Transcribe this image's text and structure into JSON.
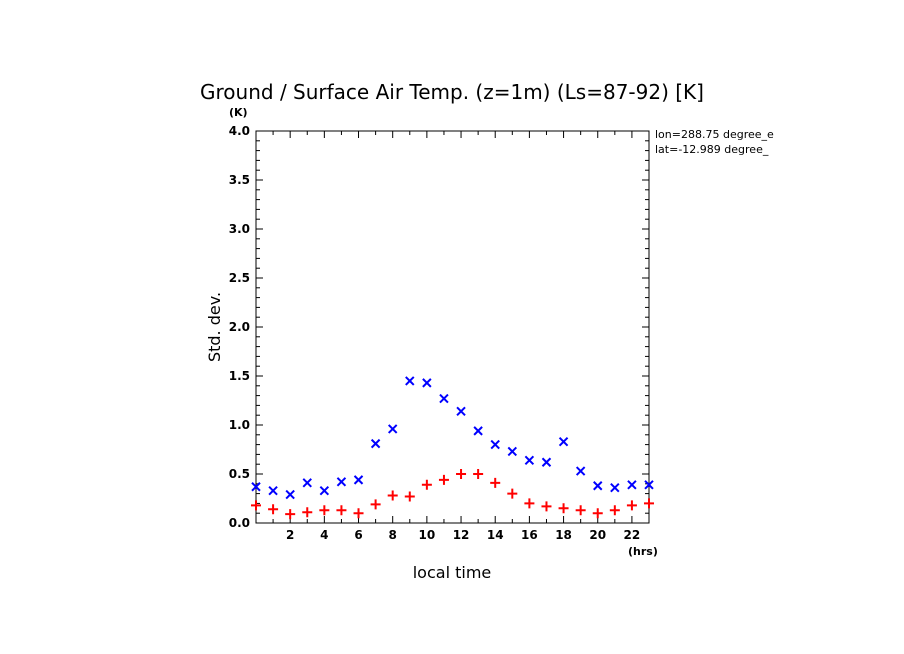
{
  "chart_data": {
    "type": "scatter",
    "title": "Ground / Surface Air Temp. (z=1m) (Ls=87-92) [K]",
    "xlabel": "local time",
    "ylabel": "Std. dev.",
    "x_unit": "(hrs)",
    "y_unit": "(K)",
    "xlim": [
      0,
      23
    ],
    "ylim": [
      0,
      4
    ],
    "x_major_ticks": [
      2,
      4,
      6,
      8,
      10,
      12,
      14,
      16,
      18,
      20,
      22
    ],
    "y_major_ticks": [
      "0.0",
      "0.5",
      "1.0",
      "1.5",
      "2.0",
      "2.5",
      "3.0",
      "3.5",
      "4.0"
    ],
    "annotations": [
      "lon=288.75 degree_e",
      "lat=-12.989 degree_"
    ],
    "grid": false,
    "series": [
      {
        "marker": "x",
        "color": "#0000ff",
        "x": [
          0,
          1,
          2,
          3,
          4,
          5,
          6,
          7,
          8,
          9,
          10,
          11,
          12,
          13,
          14,
          15,
          16,
          17,
          18,
          19,
          20,
          21,
          22,
          23
        ],
        "y": [
          0.37,
          0.33,
          0.29,
          0.41,
          0.33,
          0.42,
          0.44,
          0.81,
          0.96,
          1.45,
          1.43,
          1.27,
          1.14,
          0.94,
          0.8,
          0.73,
          0.64,
          0.62,
          0.83,
          0.53,
          0.38,
          0.36,
          0.39,
          0.39
        ]
      },
      {
        "marker": "+",
        "color": "#ff0000",
        "x": [
          0,
          1,
          2,
          3,
          4,
          5,
          6,
          7,
          8,
          9,
          10,
          11,
          12,
          13,
          14,
          15,
          16,
          17,
          18,
          19,
          20,
          21,
          22,
          23
        ],
        "y": [
          0.18,
          0.14,
          0.09,
          0.11,
          0.13,
          0.13,
          0.1,
          0.19,
          0.28,
          0.27,
          0.39,
          0.44,
          0.5,
          0.5,
          0.41,
          0.3,
          0.2,
          0.17,
          0.15,
          0.13,
          0.1,
          0.13,
          0.18,
          0.2
        ]
      }
    ]
  }
}
